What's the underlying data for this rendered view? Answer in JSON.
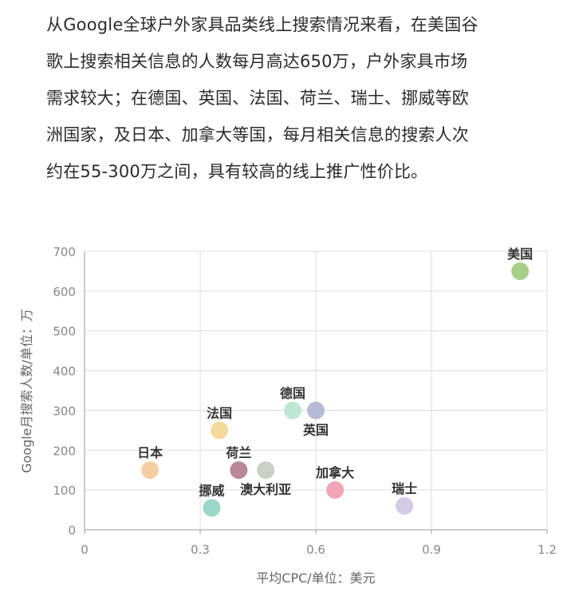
{
  "article": {
    "lines": [
      "从Google全球户外家具品类线上搜索情况来看，在美国谷",
      "歌上搜索相关信息的人数每月高达650万，户外家具市场",
      "需求较大；在德国、英国、法国、荷兰、瑞士、挪威等欧",
      "洲国家，及日本、加拿大等国，每月相关信息的搜索人次",
      "约在55-300万之间，具有较高的线上推广性价比。"
    ]
  },
  "chart_data": {
    "type": "scatter",
    "xlabel": "平均CPC/单位：美元",
    "ylabel": "Google月搜索人数/单位：万",
    "xlim": [
      0,
      1.2
    ],
    "ylim": [
      0,
      700
    ],
    "xticks": [
      0,
      0.3,
      0.6,
      0.9,
      1.2
    ],
    "xtick_labels": [
      "0",
      "0.3",
      "0.6",
      "0.9",
      "1.2"
    ],
    "yticks": [
      0,
      100,
      200,
      300,
      400,
      500,
      600,
      700
    ],
    "ytick_labels": [
      "0",
      "100",
      "200",
      "300",
      "400",
      "500",
      "600",
      "700"
    ],
    "grid": true,
    "points": [
      {
        "label": "美国",
        "x": 1.13,
        "y": 650,
        "color": "#9dc97c",
        "label_pos": "above"
      },
      {
        "label": "德国",
        "x": 0.54,
        "y": 300,
        "color": "#b7e4cf",
        "label_pos": "above"
      },
      {
        "label": "英国",
        "x": 0.6,
        "y": 300,
        "color": "#aeb4d3",
        "label_pos": "below"
      },
      {
        "label": "法国",
        "x": 0.35,
        "y": 250,
        "color": "#f3d58f",
        "label_pos": "above"
      },
      {
        "label": "日本",
        "x": 0.17,
        "y": 150,
        "color": "#f5c998",
        "label_pos": "above"
      },
      {
        "label": "荷兰",
        "x": 0.4,
        "y": 150,
        "color": "#b47b89",
        "label_pos": "above"
      },
      {
        "label": "澳大利亚",
        "x": 0.47,
        "y": 150,
        "color": "#c3cbbe",
        "label_pos": "below"
      },
      {
        "label": "加拿大",
        "x": 0.65,
        "y": 100,
        "color": "#ef9bae",
        "label_pos": "above"
      },
      {
        "label": "瑞士",
        "x": 0.83,
        "y": 60,
        "color": "#cfc4e6",
        "label_pos": "above"
      },
      {
        "label": "挪威",
        "x": 0.33,
        "y": 55,
        "color": "#8fd4c4",
        "label_pos": "above"
      }
    ]
  }
}
